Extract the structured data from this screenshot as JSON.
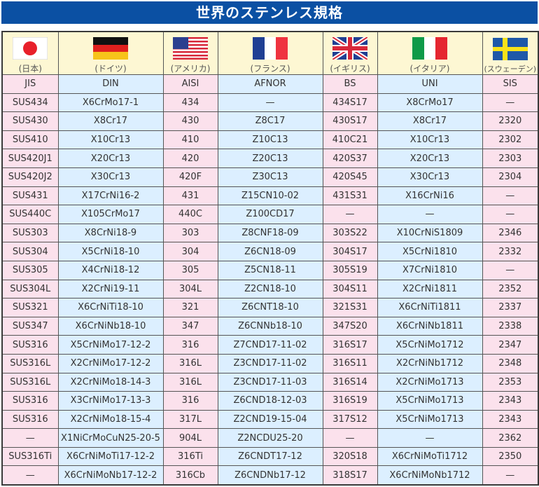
{
  "title": "世界のステンレス規格",
  "countries": [
    {
      "name": "(日本)",
      "flag": "japan-flag",
      "standard": "JIS"
    },
    {
      "name": "(ドイツ)",
      "flag": "germany-flag",
      "standard": "DIN"
    },
    {
      "name": "(アメリカ)",
      "flag": "usa-flag",
      "standard": "AISI"
    },
    {
      "name": "(フランス)",
      "flag": "france-flag",
      "standard": "AFNOR"
    },
    {
      "name": "(イギリス)",
      "flag": "uk-flag",
      "standard": "BS"
    },
    {
      "name": "(イタリア)",
      "flag": "italy-flag",
      "standard": "UNI"
    },
    {
      "name": "(スウェーデン)",
      "flag": "sweden-flag",
      "standard": "SIS"
    }
  ],
  "rows": [
    [
      "SUS434",
      "X6CrMo17-1",
      "434",
      "—",
      "434S17",
      "X8CrMo17",
      "—"
    ],
    [
      "SUS430",
      "X8Cr17",
      "430",
      "Z8C17",
      "430S17",
      "X8Cr17",
      "2320"
    ],
    [
      "SUS410",
      "X10Cr13",
      "410",
      "Z10C13",
      "410C21",
      "X10Cr13",
      "2302"
    ],
    [
      "SUS420J1",
      "X20Cr13",
      "420",
      "Z20C13",
      "420S37",
      "X20Cr13",
      "2303"
    ],
    [
      "SUS420J2",
      "X30Cr13",
      "420F",
      "Z30C13",
      "420S45",
      "X30Cr13",
      "2304"
    ],
    [
      "SUS431",
      "X17CrNi16-2",
      "431",
      "Z15CN10-02",
      "431S31",
      "X16CrNi16",
      "—"
    ],
    [
      "SUS440C",
      "X105CrMo17",
      "440C",
      "Z100CD17",
      "—",
      "—",
      "—"
    ],
    [
      "SUS303",
      "X8CrNi18-9",
      "303",
      "Z8CNF18-09",
      "303S22",
      "X10CrNiS1809",
      "2346"
    ],
    [
      "SUS304",
      "X5CrNi18-10",
      "304",
      "Z6CN18-09",
      "304S17",
      "X5CrNi1810",
      "2332"
    ],
    [
      "SUS305",
      "X4CrNi18-12",
      "305",
      "Z5CN18-11",
      "305S19",
      "X7CrNi1810",
      "—"
    ],
    [
      "SUS304L",
      "X2CrNi19-11",
      "304L",
      "Z2CN18-10",
      "304S11",
      "X2CrNi1811",
      "2352"
    ],
    [
      "SUS321",
      "X6CrNiTi18-10",
      "321",
      "Z6CNT18-10",
      "321S31",
      "X6CrNiTi1811",
      "2337"
    ],
    [
      "SUS347",
      "X6CrNiNb18-10",
      "347",
      "Z6CNNb18-10",
      "347S20",
      "X6CrNiNb1811",
      "2338"
    ],
    [
      "SUS316",
      "X5CrNiMo17-12-2",
      "316",
      "Z7CND17-11-02",
      "316S17",
      "X5CrNiMo1712",
      "2347"
    ],
    [
      "SUS316L",
      "X2CrNiMo17-12-2",
      "316L",
      "Z3CND17-11-02",
      "316S11",
      "X2CrNiNb1712",
      "2348"
    ],
    [
      "SUS316L",
      "X2CrNiMo18-14-3",
      "316L",
      "Z3CND17-11-03",
      "316S14",
      "X2CrNiMo1713",
      "2353"
    ],
    [
      "SUS316",
      "X3CrNiMo17-13-3",
      "316",
      "Z6CND18-12-03",
      "316S19",
      "X5CrNiMo1713",
      "2343"
    ],
    [
      "SUS316",
      "X2CrNiMo18-15-4",
      "317L",
      "Z2CND19-15-04",
      "317S12",
      "X5CrNiMo1713",
      "2343"
    ],
    [
      "—",
      "X1NiCrMoCuN25-20-5",
      "904L",
      "Z2NCDU25-20",
      "—",
      "—",
      "2362"
    ],
    [
      "SUS316Ti",
      "X6CrNiMoTi17-12-2",
      "316Ti",
      "Z6CNDT17-12",
      "320S18",
      "X6CrNiMoTi1712",
      "2350"
    ],
    [
      "—",
      "X6CrNiMoNb17-12-2",
      "316Cb",
      "Z6CNDNb17-12",
      "318S17",
      "X6CrNiMoNb1712",
      "—"
    ]
  ]
}
